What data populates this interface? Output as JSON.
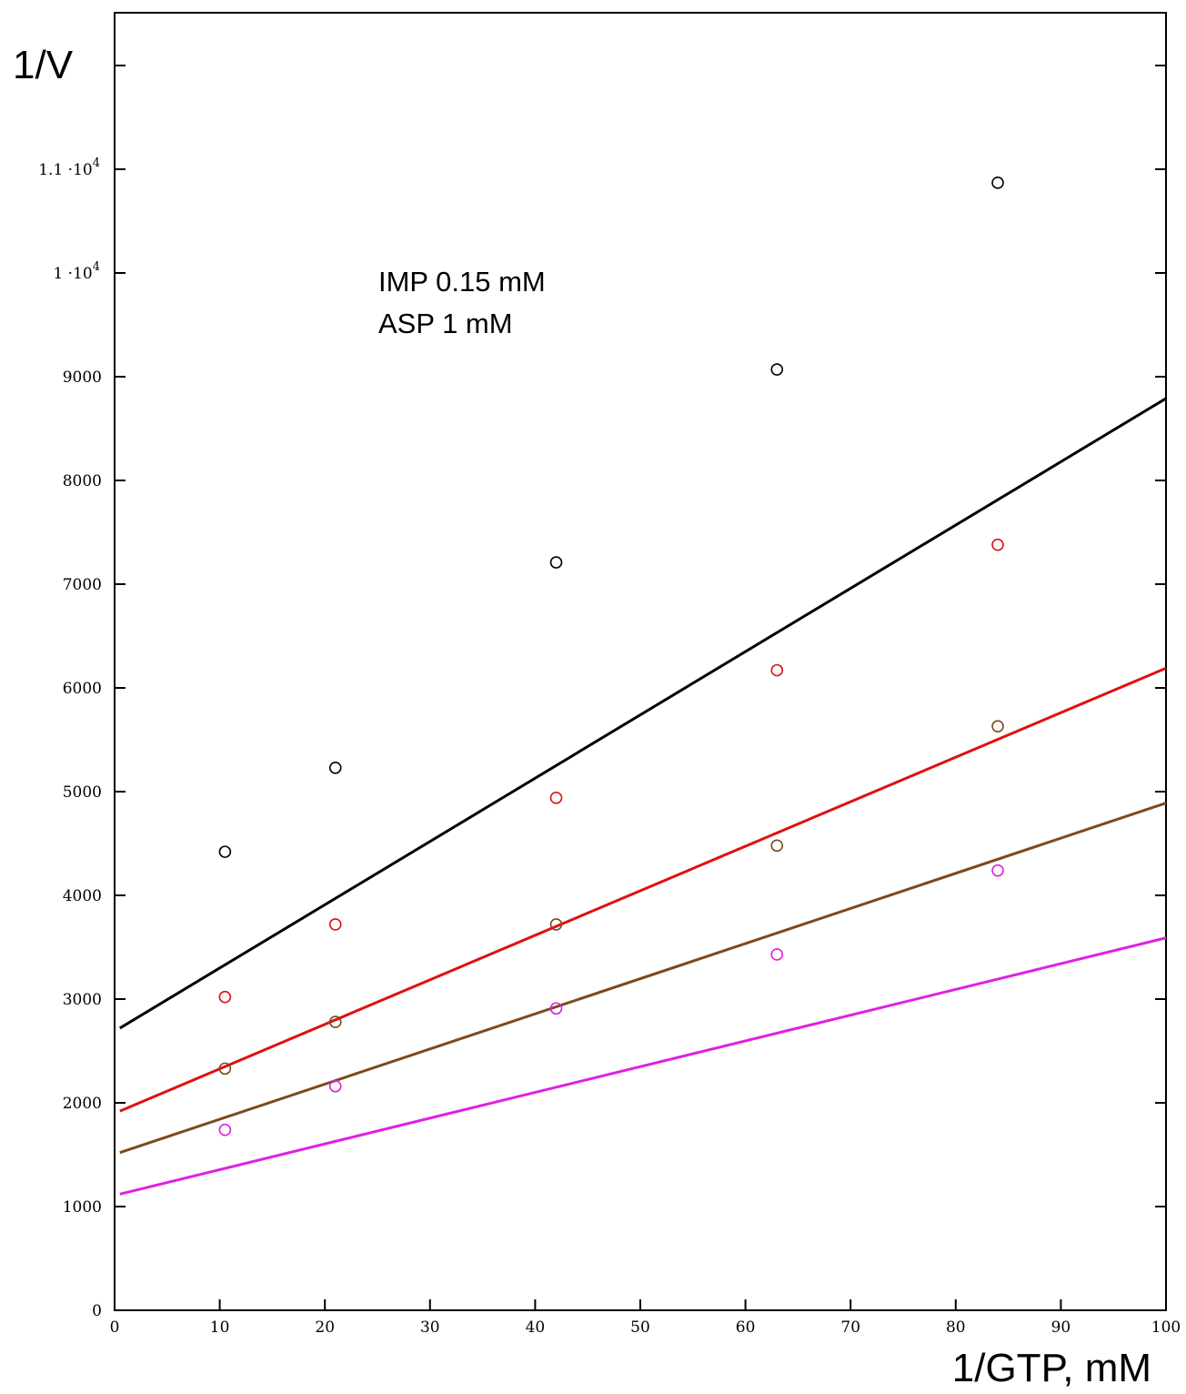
{
  "chart_data": {
    "type": "scatter",
    "title": "",
    "xlabel": "1/GTP, mM",
    "ylabel": "1/V",
    "xlim": [
      0,
      100
    ],
    "ylim": [
      0,
      12000
    ],
    "x_ticks": [
      0,
      10,
      20,
      30,
      40,
      50,
      60,
      70,
      80,
      90,
      100
    ],
    "y_ticks": [
      {
        "value": 0,
        "label": "0"
      },
      {
        "value": 1000,
        "label": "1000"
      },
      {
        "value": 2000,
        "label": "2000"
      },
      {
        "value": 3000,
        "label": "3000"
      },
      {
        "value": 4000,
        "label": "4000"
      },
      {
        "value": 5000,
        "label": "5000"
      },
      {
        "value": 6000,
        "label": "6000"
      },
      {
        "value": 7000,
        "label": "7000"
      },
      {
        "value": 8000,
        "label": "8000"
      },
      {
        "value": 9000,
        "label": "9000"
      },
      {
        "value": 10000,
        "label": "1·10",
        "exp": "4",
        "mant": "1 ·10"
      },
      {
        "value": 11000,
        "label": "1.1·10",
        "exp": "4",
        "mant": "1.1 ·10"
      },
      {
        "value": 12000,
        "label": ""
      }
    ],
    "grid": false,
    "annotations": [
      "IMP 0.15 mM",
      "ASP 1 mM"
    ],
    "series": [
      {
        "color": "#000000",
        "points": [
          [
            10.5,
            4420
          ],
          [
            21,
            5230
          ],
          [
            42,
            7210
          ],
          [
            63,
            9070
          ],
          [
            84,
            10870
          ]
        ],
        "fit_line": [
          [
            0.5,
            2720
          ],
          [
            100,
            8790
          ]
        ]
      },
      {
        "color": "#e01010",
        "points": [
          [
            10.5,
            3020
          ],
          [
            21,
            3720
          ],
          [
            42,
            4940
          ],
          [
            63,
            6170
          ],
          [
            84,
            7380
          ]
        ],
        "fit_line": [
          [
            0.5,
            1920
          ],
          [
            100,
            6190
          ]
        ]
      },
      {
        "color": "#7a4a1c",
        "points": [
          [
            10.5,
            2330
          ],
          [
            21,
            2780
          ],
          [
            42,
            3720
          ],
          [
            63,
            4480
          ],
          [
            84,
            5630
          ]
        ],
        "fit_line": [
          [
            0.5,
            1520
          ],
          [
            100,
            4890
          ]
        ]
      },
      {
        "color": "#e020e0",
        "points": [
          [
            10.5,
            1740
          ],
          [
            21,
            2160
          ],
          [
            42,
            2910
          ],
          [
            63,
            3430
          ],
          [
            84,
            4240
          ]
        ],
        "fit_line": [
          [
            0.5,
            1120
          ],
          [
            100,
            3590
          ]
        ]
      }
    ]
  }
}
